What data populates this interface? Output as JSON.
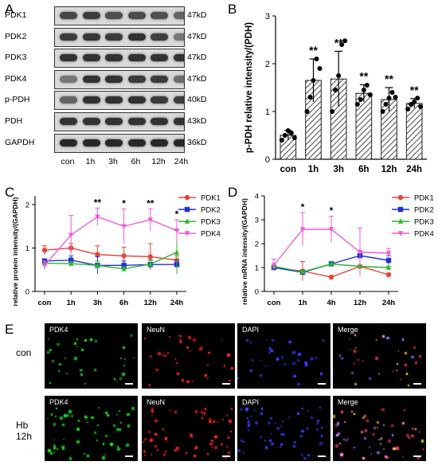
{
  "panel_labels": {
    "A": "A",
    "B": "B",
    "C": "C",
    "D": "D",
    "E": "E"
  },
  "blot": {
    "rows": [
      {
        "label": "PDK1",
        "kd": "47kD",
        "intensity": [
          0.75,
          0.8,
          0.7,
          0.72,
          0.7,
          0.6
        ]
      },
      {
        "label": "PDK2",
        "kd": "47kD",
        "intensity": [
          0.8,
          0.82,
          0.8,
          0.85,
          0.78,
          0.5
        ]
      },
      {
        "label": "PDK3",
        "kd": "47kD",
        "intensity": [
          0.85,
          0.85,
          0.85,
          0.85,
          0.85,
          0.85
        ]
      },
      {
        "label": "PDK4",
        "kd": "47kD",
        "intensity": [
          0.5,
          0.85,
          0.85,
          0.8,
          0.8,
          0.55
        ]
      },
      {
        "label": "p-PDH",
        "kd": "40kD",
        "intensity": [
          0.6,
          0.85,
          0.85,
          0.85,
          0.8,
          0.8
        ]
      },
      {
        "label": "PDH",
        "kd": "43kD",
        "intensity": [
          0.85,
          0.85,
          0.85,
          0.85,
          0.85,
          0.85
        ]
      },
      {
        "label": "GAPDH",
        "kd": "36kD",
        "intensity": [
          0.9,
          0.9,
          0.9,
          0.9,
          0.9,
          0.9
        ]
      }
    ],
    "lanes": [
      "con",
      "1h",
      "3h",
      "6h",
      "12h",
      "24h"
    ]
  },
  "chart_data": [
    {
      "type": "bar",
      "panel": "B",
      "categories": [
        "con",
        "1h",
        "3h",
        "6h",
        "12h",
        "24h"
      ],
      "values": [
        0.5,
        1.65,
        1.68,
        1.38,
        1.25,
        1.17
      ],
      "errors": [
        0.1,
        0.45,
        0.58,
        0.18,
        0.25,
        0.1
      ],
      "points": [
        [
          0.4,
          0.5,
          0.6,
          0.55,
          0.45
        ],
        [
          1.0,
          1.3,
          1.65,
          2.1,
          1.9
        ],
        [
          1.0,
          1.45,
          1.75,
          2.4,
          2.48
        ],
        [
          1.15,
          1.25,
          1.45,
          1.55,
          1.35
        ],
        [
          1.0,
          1.15,
          1.28,
          1.4,
          1.3
        ],
        [
          1.05,
          1.15,
          1.2,
          1.28,
          1.1
        ]
      ],
      "significance": [
        "",
        "**",
        "**",
        "**",
        "**",
        "**"
      ],
      "ylabel": "p-PDH relative  intensity/(PDH)",
      "ylim": [
        0,
        3
      ],
      "yticks": [
        "0",
        "1",
        "2",
        "3"
      ]
    },
    {
      "type": "line",
      "panel": "C",
      "x": [
        "con",
        "1h",
        "3h",
        "6h",
        "12h",
        "24h"
      ],
      "series": [
        {
          "name": "PDK1",
          "color": "#e8443a",
          "marker": "circle",
          "values": [
            0.95,
            1.0,
            0.85,
            0.82,
            0.8,
            0.72
          ],
          "errors": [
            0.1,
            0.1,
            0.2,
            0.2,
            0.3,
            0.1
          ]
        },
        {
          "name": "PDK2",
          "color": "#1f2fd6",
          "marker": "square",
          "values": [
            0.7,
            0.72,
            0.6,
            0.6,
            0.62,
            0.62
          ],
          "errors": [
            0.05,
            0.1,
            0.2,
            0.1,
            0.1,
            0.1
          ]
        },
        {
          "name": "PDK3",
          "color": "#2db52d",
          "marker": "triangle-up",
          "values": [
            0.65,
            0.64,
            0.6,
            0.52,
            0.63,
            0.9
          ],
          "errors": [
            0.05,
            0.05,
            0.1,
            0.05,
            0.1,
            0.5
          ]
        },
        {
          "name": "PDK4",
          "color": "#f25ad8",
          "marker": "triangle-down",
          "values": [
            0.6,
            1.3,
            1.72,
            1.5,
            1.65,
            1.4
          ],
          "errors": [
            0.1,
            0.45,
            0.2,
            0.4,
            0.25,
            0.25
          ]
        }
      ],
      "significance": [
        "",
        "",
        "**",
        "*",
        "**",
        "*"
      ],
      "ylabel": "relative protein intensity/(GAPDH)",
      "ylim": [
        0,
        2.2
      ],
      "yticks": [
        "0",
        "1",
        "2"
      ]
    },
    {
      "type": "line",
      "panel": "D",
      "x": [
        "con",
        "1h",
        "4h",
        "12h",
        "24h"
      ],
      "series": [
        {
          "name": "PDK1",
          "color": "#e8443a",
          "marker": "circle",
          "values": [
            1.0,
            0.85,
            0.6,
            1.05,
            0.7
          ],
          "errors": [
            0.1,
            0.4,
            0.05,
            0.05,
            0.05
          ]
        },
        {
          "name": "PDK2",
          "color": "#1f2fd6",
          "marker": "square",
          "values": [
            1.0,
            0.8,
            1.15,
            1.5,
            1.3
          ],
          "errors": [
            0.1,
            0.05,
            0.1,
            0.2,
            0.2
          ]
        },
        {
          "name": "PDK3",
          "color": "#2db52d",
          "marker": "triangle-up",
          "values": [
            1.05,
            0.82,
            1.15,
            1.05,
            1.0
          ],
          "errors": [
            0.05,
            0.05,
            0.05,
            0.05,
            0.05
          ]
        },
        {
          "name": "PDK4",
          "color": "#f25ad8",
          "marker": "triangle-down",
          "values": [
            1.1,
            2.6,
            2.6,
            1.65,
            1.6
          ],
          "errors": [
            0.25,
            0.7,
            0.55,
            1.0,
            0.2
          ]
        }
      ],
      "significance": [
        "",
        "*",
        "*",
        "",
        ""
      ],
      "ylabel": "relative mRNA intensity/(GAPDH)",
      "ylim": [
        0,
        4
      ],
      "yticks": [
        "0",
        "1",
        "2",
        "3",
        "4"
      ]
    }
  ],
  "fluorescence": {
    "columns": [
      "PDK4",
      "NeuN",
      "DAPI",
      "Merge"
    ],
    "column_colors": [
      "#22d42a",
      "#ff2626",
      "#3b46ff",
      "#ff8ad0"
    ],
    "rows": [
      {
        "label": "con",
        "density": 0.6
      },
      {
        "label": "Hb\n12h",
        "density": 1.0
      }
    ]
  }
}
